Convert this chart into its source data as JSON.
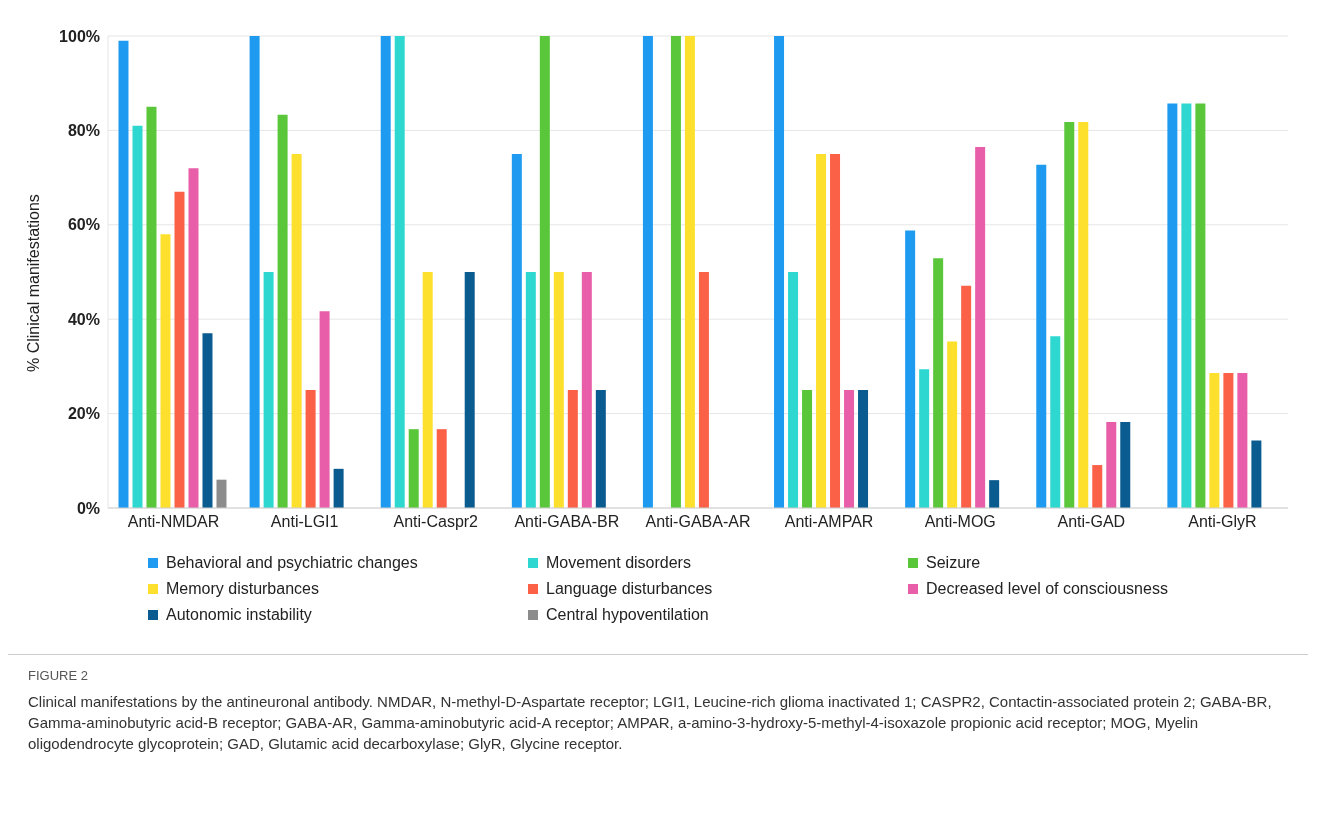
{
  "chart_data": {
    "type": "bar",
    "ylabel": "% Clinical manifestations",
    "categories": [
      "Anti-NMDAR",
      "Anti-LGI1",
      "Anti-Caspr2",
      "Anti-GABA-BR",
      "Anti-GABA-AR",
      "Anti-AMPAR",
      "Anti-MOG",
      "Anti-GAD",
      "Anti-GlyR"
    ],
    "series": [
      {
        "name": "Behavioral and psychiatric changes",
        "color": "#1e9bf0",
        "values": [
          99,
          100,
          100,
          75,
          100,
          100,
          58.8,
          72.7,
          85.7
        ]
      },
      {
        "name": "Movement disorders",
        "color": "#2ed8d0",
        "values": [
          81,
          50,
          100,
          50,
          0,
          50,
          29.4,
          36.4,
          85.7
        ]
      },
      {
        "name": "Seizure",
        "color": "#5ac63a",
        "values": [
          85,
          83.3,
          16.7,
          100,
          100,
          25,
          52.9,
          81.8,
          85.7
        ]
      },
      {
        "name": "Memory disturbances",
        "color": "#fde02e",
        "values": [
          58,
          75,
          50,
          50,
          100,
          75,
          35.3,
          81.8,
          28.6
        ]
      },
      {
        "name": "Language disturbances",
        "color": "#fa6147",
        "values": [
          67,
          25,
          16.7,
          25,
          50,
          75,
          47.1,
          9.1,
          28.6
        ]
      },
      {
        "name": "Decreased level of consciousness",
        "color": "#e85ea8",
        "values": [
          72,
          41.7,
          0,
          50,
          0,
          25,
          76.5,
          18.2,
          28.6
        ]
      },
      {
        "name": "Autonomic instability",
        "color": "#0a5b8f",
        "values": [
          37,
          8.3,
          50,
          25,
          0,
          25,
          5.9,
          18.2,
          14.3
        ]
      },
      {
        "name": "Central hypoventilation",
        "color": "#8c8c8c",
        "values": [
          6,
          0,
          0,
          0,
          0,
          0,
          0,
          0,
          0
        ]
      }
    ],
    "ylim": [
      0,
      100
    ],
    "yticks": [
      {
        "value": 0,
        "label": "0%"
      },
      {
        "value": 20,
        "label": "20%"
      },
      {
        "value": 40,
        "label": "40%"
      },
      {
        "value": 60,
        "label": "60%"
      },
      {
        "value": 80,
        "label": "80%"
      },
      {
        "value": 100,
        "label": "100%"
      }
    ],
    "grid": "y",
    "legend": "bottom",
    "annotations": [
      "FIGURE 2",
      "Clinical manifestations by the antineuronal antibody. NMDAR, N-methyl-D-Aspartate receptor; LGI1, Leucine-rich glioma inactivated 1; CASPR2, Contactin-associated protein 2; GABA-BR, Gamma-aminobutyric acid-B receptor; GABA-AR, Gamma-aminobutyric acid-A receptor; AMPAR, a-amino-3-hydroxy-5-methyl-4-isoxazole propionic acid receptor; MOG, Myelin oligodendrocyte glycoprotein; GAD, Glutamic acid decarboxylase; GlyR, Glycine receptor."
    ]
  }
}
